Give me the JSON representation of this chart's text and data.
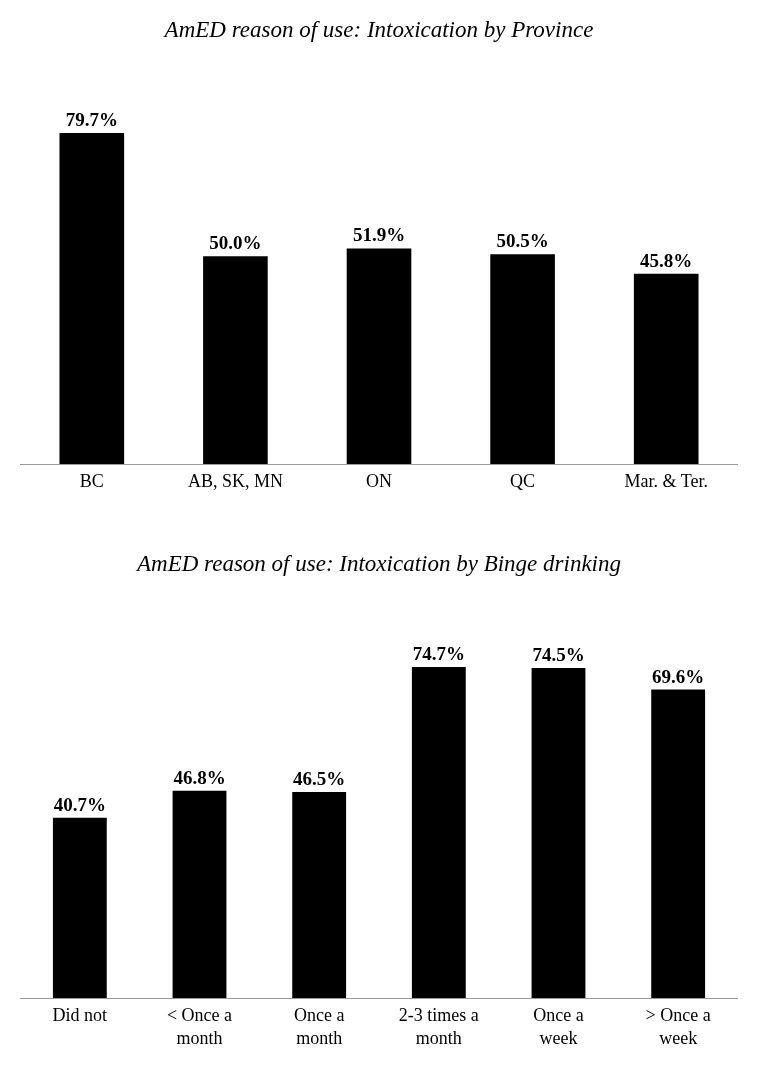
{
  "chart_data": [
    {
      "type": "bar",
      "title": "AmED reason of use: Intoxication by Province",
      "categories": [
        "BC",
        "AB, SK, MN",
        "ON",
        "QC",
        "Mar. & Ter."
      ],
      "values": [
        79.7,
        50.0,
        51.9,
        50.5,
        45.8
      ],
      "value_labels": [
        "79.7%",
        "50.0%",
        "51.9%",
        "50.5%",
        "45.8%"
      ],
      "color": "#000000"
    },
    {
      "type": "bar",
      "title": "AmED reason of use: Intoxication by Binge drinking",
      "categories": [
        "Did not",
        "< Once a month",
        "Once a month",
        "2-3 times a month",
        "Once a week",
        "> Once a week"
      ],
      "values": [
        40.7,
        46.8,
        46.5,
        74.7,
        74.5,
        69.6
      ],
      "value_labels": [
        "40.7%",
        "46.8%",
        "46.5%",
        "74.7%",
        "74.5%",
        "69.6%"
      ],
      "color": "#000000"
    }
  ]
}
